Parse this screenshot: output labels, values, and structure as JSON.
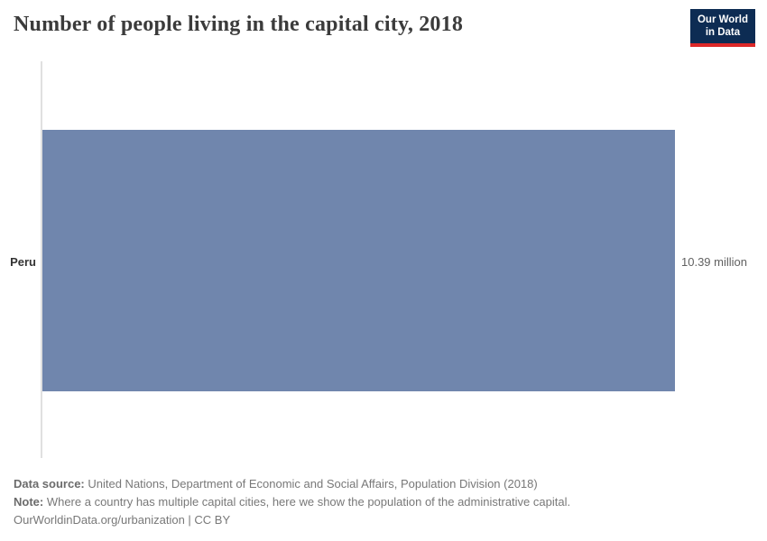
{
  "header": {
    "title": "Number of people living in the capital city, 2018",
    "logo": {
      "line1": "Our World",
      "line2": "in Data",
      "bg_color": "#0d2c53",
      "accent_color": "#dc2828"
    }
  },
  "chart_data": {
    "type": "bar",
    "orientation": "horizontal",
    "title": "Number of people living in the capital city, 2018",
    "categories": [
      "Peru"
    ],
    "values": [
      10.39
    ],
    "unit": "million",
    "value_labels": [
      "10.39 million"
    ],
    "bar_color": "#7086ad",
    "xlim": [
      0,
      10.39
    ],
    "grid": "off",
    "legend": "none"
  },
  "footer": {
    "data_source_label": "Data source:",
    "data_source_text": " United Nations, Department of Economic and Social Affairs, Population Division (2018)",
    "note_label": "Note:",
    "note_text": " Where a country has multiple capital cities, here we show the population of the administrative capital.",
    "citation": "OurWorldinData.org/urbanization | CC BY"
  }
}
